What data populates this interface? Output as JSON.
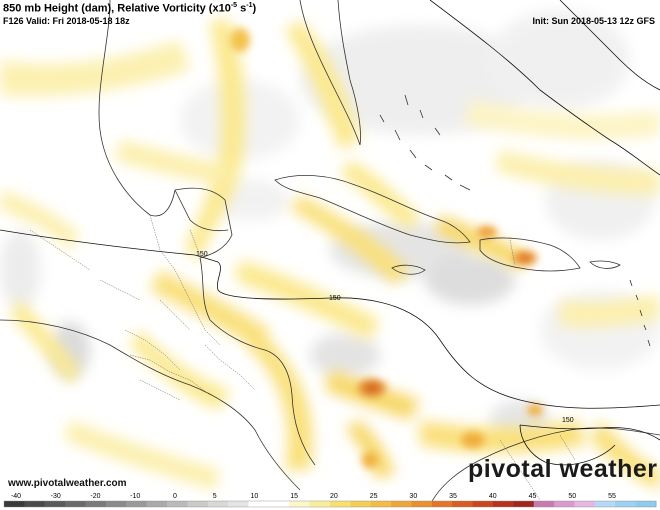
{
  "title": {
    "main": "850 mb Height (dam), Relative Vorticity (x10",
    "exponent": "-5",
    "unit": " s",
    "unit_exponent": "-1",
    "close": ")",
    "valid": "F126 Valid: Fri 2018-05-18 18z",
    "init": "Init: Sun 2018-05-13 12z GFS"
  },
  "contour_labels": [
    "150",
    "150",
    "150"
  ],
  "branding": {
    "url": "www.pivotalweather.com",
    "logo_text": "pivotal weather"
  },
  "colorbar": {
    "ticks": [
      "-40",
      "-30",
      "-20",
      "-10",
      "0",
      "5",
      "10",
      "15",
      "20",
      "25",
      "30",
      "35",
      "40",
      "45",
      "50",
      "55"
    ],
    "colors": [
      "#3a3a3a",
      "#4a4a4a",
      "#5a5a5a",
      "#6a6a6a",
      "#7a7a7a",
      "#8a8a8a",
      "#9a9a9a",
      "#aaaaaa",
      "#bababa",
      "#cacaca",
      "#d8d8d8",
      "#e4e4e4",
      "#ffffff",
      "#ffffff",
      "#fdf6c8",
      "#fbee9a",
      "#f8e070",
      "#f5cf55",
      "#f2bc45",
      "#eea63a",
      "#ea8f30",
      "#e47528",
      "#d95c22",
      "#cc451f",
      "#b8331f",
      "#a0261f",
      "#c77bb0",
      "#d99ad0",
      "#e8b6e3",
      "#b3d9f5",
      "#9dd2f0",
      "#8ecbee"
    ]
  }
}
